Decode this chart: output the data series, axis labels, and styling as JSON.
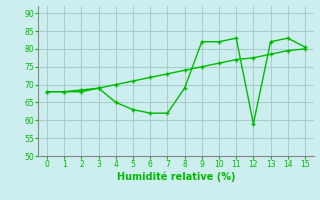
{
  "x": [
    0,
    1,
    2,
    3,
    4,
    5,
    6,
    7,
    8,
    9,
    10,
    11,
    12,
    13,
    14,
    15
  ],
  "line1": [
    68,
    68,
    68.5,
    69,
    70,
    71,
    72,
    73,
    74,
    75,
    76,
    77,
    77.5,
    78.5,
    79.5,
    80
  ],
  "line2": [
    68,
    68,
    68,
    69,
    65,
    63,
    62,
    62,
    69,
    82,
    82,
    83,
    59,
    82,
    83,
    80.5
  ],
  "line_color": "#00bb00",
  "bg_color": "#cceeee",
  "grid_color": "#aacccc",
  "xlabel": "Humidité relative (%)",
  "ylim": [
    50,
    92
  ],
  "xlim": [
    -0.5,
    15.5
  ],
  "yticks": [
    50,
    55,
    60,
    65,
    70,
    75,
    80,
    85,
    90
  ],
  "xticks": [
    0,
    1,
    2,
    3,
    4,
    5,
    6,
    7,
    8,
    9,
    10,
    11,
    12,
    13,
    14,
    15
  ]
}
